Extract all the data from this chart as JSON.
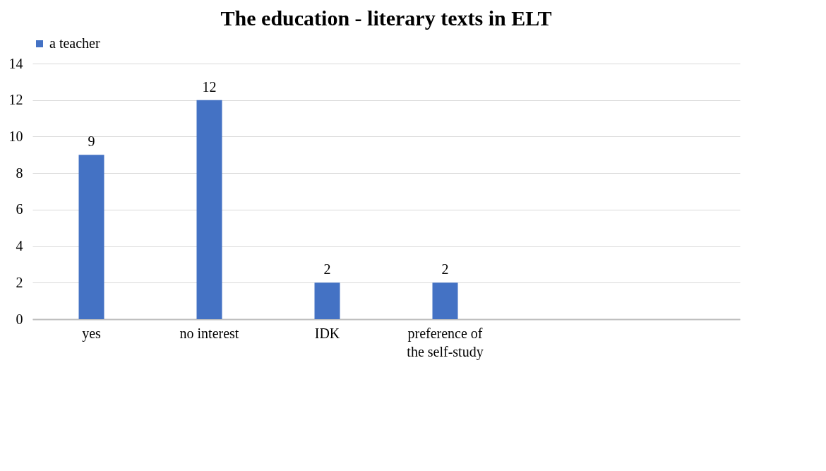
{
  "chart_data": {
    "type": "bar",
    "title": "The education - literary texts in ELT",
    "categories": [
      "yes",
      "no interest",
      "IDK",
      "preference of the self-study",
      null,
      null
    ],
    "series": [
      {
        "name": "a teacher",
        "color": "#4472c4",
        "values": [
          9,
          12,
          2,
          2,
          null,
          null
        ]
      }
    ],
    "ylim": [
      0,
      14
    ],
    "yticks": [
      0,
      2,
      4,
      6,
      8,
      10,
      12,
      14
    ],
    "grid": "y",
    "legend": "top",
    "data_labels": true
  }
}
